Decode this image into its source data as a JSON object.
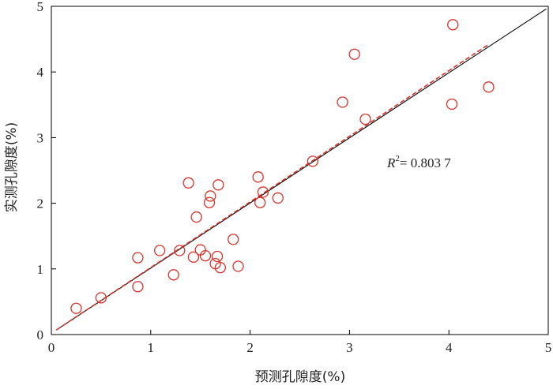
{
  "chart_data": {
    "type": "scatter",
    "xlabel": "预测孔隙度(%)",
    "ylabel": "实测孔隙度(%)",
    "xlim": [
      0,
      5
    ],
    "ylim": [
      0,
      5
    ],
    "x_ticks": [
      "0",
      "1",
      "2",
      "3",
      "4",
      "5"
    ],
    "y_ticks": [
      "0",
      "1",
      "2",
      "3",
      "4",
      "5"
    ],
    "grid": false,
    "annotation": {
      "symbol": "R",
      "sup": "2",
      "value": "= 0.803 7"
    },
    "series": [
      {
        "marker": "open-circle",
        "color": "#d8332a",
        "points": [
          {
            "x": 0.25,
            "y": 0.4
          },
          {
            "x": 0.5,
            "y": 0.56
          },
          {
            "x": 0.87,
            "y": 0.73
          },
          {
            "x": 0.87,
            "y": 1.17
          },
          {
            "x": 1.09,
            "y": 1.28
          },
          {
            "x": 1.23,
            "y": 0.91
          },
          {
            "x": 1.29,
            "y": 1.28
          },
          {
            "x": 1.38,
            "y": 2.31
          },
          {
            "x": 1.43,
            "y": 1.18
          },
          {
            "x": 1.46,
            "y": 1.79
          },
          {
            "x": 1.5,
            "y": 1.29
          },
          {
            "x": 1.55,
            "y": 1.2
          },
          {
            "x": 1.59,
            "y": 2.01
          },
          {
            "x": 1.6,
            "y": 2.11
          },
          {
            "x": 1.65,
            "y": 1.08
          },
          {
            "x": 1.67,
            "y": 1.19
          },
          {
            "x": 1.68,
            "y": 2.28
          },
          {
            "x": 1.7,
            "y": 1.02
          },
          {
            "x": 1.83,
            "y": 1.45
          },
          {
            "x": 1.88,
            "y": 1.04
          },
          {
            "x": 2.08,
            "y": 2.4
          },
          {
            "x": 2.1,
            "y": 2.01
          },
          {
            "x": 2.13,
            "y": 2.17
          },
          {
            "x": 2.28,
            "y": 2.08
          },
          {
            "x": 2.63,
            "y": 2.64
          },
          {
            "x": 2.93,
            "y": 3.54
          },
          {
            "x": 3.05,
            "y": 4.27
          },
          {
            "x": 3.16,
            "y": 3.28
          },
          {
            "x": 4.03,
            "y": 3.51
          },
          {
            "x": 4.04,
            "y": 4.72
          },
          {
            "x": 4.4,
            "y": 3.77
          }
        ]
      }
    ],
    "reference_line": {
      "style": "solid",
      "color": "#000000",
      "from": [
        0.05,
        0.07
      ],
      "to": [
        4.98,
        4.96
      ]
    },
    "fit_line": {
      "style": "dashed",
      "color": "#d8332a",
      "from": [
        0.05,
        0.07
      ],
      "to": [
        4.4,
        4.42
      ]
    }
  }
}
